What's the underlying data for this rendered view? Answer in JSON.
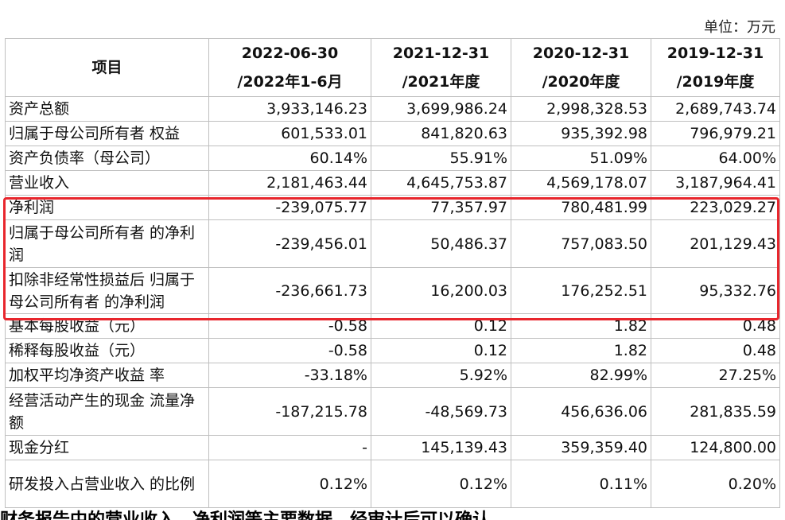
{
  "unit": "单位：万元",
  "header": {
    "item": "项目",
    "columns": [
      {
        "date": "2022-06-30",
        "period": "/2022年1-6月"
      },
      {
        "date": "2021-12-31",
        "period": "/2021年度"
      },
      {
        "date": "2020-12-31",
        "period": "/2020年度"
      },
      {
        "date": "2019-12-31",
        "period": "/2019年度"
      }
    ]
  },
  "rows": [
    {
      "name": "资产总额",
      "values": [
        "3,933,146.23",
        "3,699,986.24",
        "2,998,328.53",
        "2,689,743.74"
      ],
      "lines": 1
    },
    {
      "name": "归属于母公司所有者 权益",
      "values": [
        "601,533.01",
        "841,820.63",
        "935,392.98",
        "796,979.21"
      ],
      "lines": 1
    },
    {
      "name": "资产负债率（母公司）",
      "values": [
        "60.14%",
        "55.91%",
        "51.09%",
        "64.00%"
      ],
      "lines": 1
    },
    {
      "name": "营业收入",
      "values": [
        "2,181,463.44",
        "4,645,753.87",
        "4,569,178.07",
        "3,187,964.41"
      ],
      "lines": 1
    },
    {
      "name": "净利润",
      "values": [
        "-239,075.77",
        "77,357.97",
        "780,481.99",
        "223,029.27"
      ],
      "lines": 1
    },
    {
      "name": "归属于母公司所有者 的净利润",
      "values": [
        "-239,456.01",
        "50,486.37",
        "757,083.50",
        "201,129.43"
      ],
      "lines": 2
    },
    {
      "name": "扣除非经常性损益后 归属于母公司所有者 的净利润",
      "values": [
        "-236,661.73",
        "16,200.03",
        "176,252.51",
        "95,332.76"
      ],
      "lines": 2
    },
    {
      "name": "基本每股收益（元）",
      "values": [
        "-0.58",
        "0.12",
        "1.82",
        "0.48"
      ],
      "lines": 1
    },
    {
      "name": "稀释每股收益（元）",
      "values": [
        "-0.58",
        "0.12",
        "1.82",
        "0.48"
      ],
      "lines": 1
    },
    {
      "name": "加权平均净资产收益 率",
      "values": [
        "-33.18%",
        "5.92%",
        "82.99%",
        "27.25%"
      ],
      "lines": 1
    },
    {
      "name": "经营活动产生的现金 流量净额",
      "values": [
        "-187,215.78",
        "-48,569.73",
        "456,636.06",
        "281,835.59"
      ],
      "lines": 2
    },
    {
      "name": "现金分红",
      "values": [
        "-",
        "145,139.43",
        "359,359.40",
        "124,800.00"
      ],
      "lines": 1
    },
    {
      "name": "研发投入占营业收入 的比例",
      "values": [
        "0.12%",
        "0.12%",
        "0.11%",
        "0.20%"
      ],
      "lines": 2
    }
  ],
  "footer_cut_text": "财务报告中的营业收入、净利润等主要数据，经审计后可以确认",
  "colors": {
    "highlight_border": "#e8262d",
    "grid": "#bfbfbf"
  }
}
